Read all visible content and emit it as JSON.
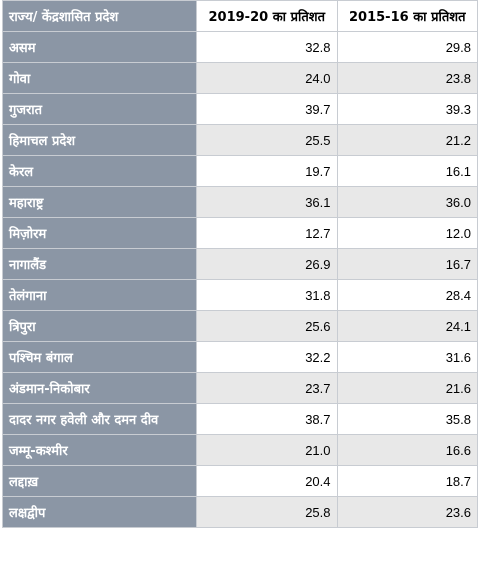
{
  "headers": {
    "state": "राज्य/ केंद्रशासित प्रदेश",
    "year_2019_20": "2019-20 का प्रतिशत",
    "year_2015_16": "2015-16 का प्रतिशत"
  },
  "rows": [
    {
      "state": "असम",
      "v2019": "32.8",
      "v2015": "29.8"
    },
    {
      "state": "गोवा",
      "v2019": "24.0",
      "v2015": "23.8"
    },
    {
      "state": "गुजरात",
      "v2019": "39.7",
      "v2015": "39.3"
    },
    {
      "state": "हिमाचल प्रदेश",
      "v2019": "25.5",
      "v2015": "21.2"
    },
    {
      "state": "केरल",
      "v2019": "19.7",
      "v2015": "16.1"
    },
    {
      "state": "महाराष्ट्र",
      "v2019": "36.1",
      "v2015": "36.0"
    },
    {
      "state": "मिज़ोरम",
      "v2019": "12.7",
      "v2015": "12.0"
    },
    {
      "state": "नागालैंड",
      "v2019": "26.9",
      "v2015": "16.7"
    },
    {
      "state": "तेलंगाना",
      "v2019": "31.8",
      "v2015": "28.4"
    },
    {
      "state": "त्रिपुरा",
      "v2019": "25.6",
      "v2015": "24.1"
    },
    {
      "state": "पश्चिम बंगाल",
      "v2019": "32.2",
      "v2015": "31.6"
    },
    {
      "state": "अंडमान-निकोबार",
      "v2019": "23.7",
      "v2015": "21.6"
    },
    {
      "state": "दादर नगर हवेली और दमन दीव",
      "v2019": "38.7",
      "v2015": "35.8"
    },
    {
      "state": "जम्मू-कश्मीर",
      "v2019": "21.0",
      "v2015": "16.6"
    },
    {
      "state": "लद्दाख़",
      "v2019": "20.4",
      "v2015": "18.7"
    },
    {
      "state": "लक्षद्वीप",
      "v2019": "25.8",
      "v2015": "23.6"
    }
  ]
}
